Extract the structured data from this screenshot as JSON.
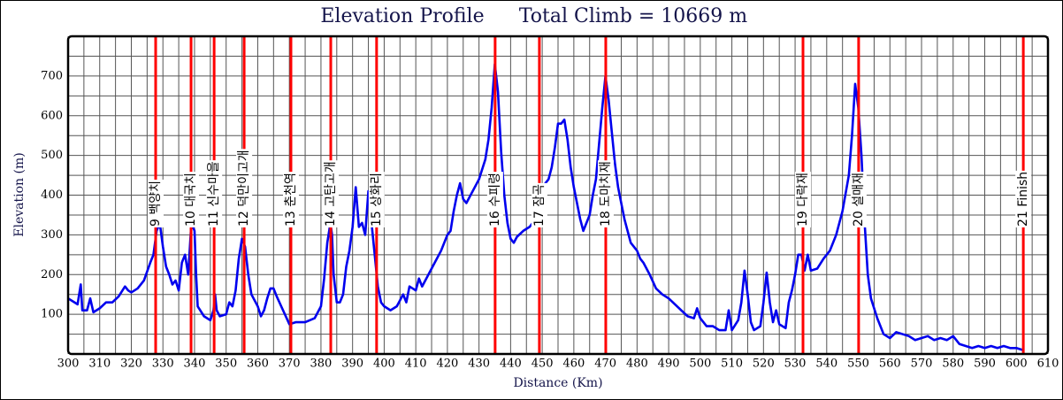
{
  "chart_data": {
    "type": "line",
    "title": "Elevation Profile",
    "subtitle": "Total Climb = 10669 m",
    "x_label": "Distance (Km)",
    "y_label": "Elevation (m)",
    "xlim": [
      300,
      610
    ],
    "ylim": [
      0,
      800
    ],
    "xticks": [
      300,
      310,
      320,
      330,
      340,
      350,
      360,
      370,
      380,
      390,
      400,
      410,
      420,
      430,
      440,
      450,
      460,
      470,
      480,
      490,
      500,
      510,
      520,
      530,
      540,
      550,
      560,
      570,
      580,
      590,
      600,
      610
    ],
    "yticks": [
      100,
      200,
      300,
      400,
      500,
      600,
      700
    ],
    "grid": true,
    "minor_grid": true,
    "x": [
      300,
      302,
      303,
      304,
      304.5,
      306,
      307,
      308,
      310,
      312,
      314,
      316,
      318,
      319,
      320,
      322,
      324,
      326,
      327,
      328,
      329,
      330,
      331,
      332,
      333,
      334,
      335,
      336,
      337,
      338,
      339,
      340,
      340.5,
      341,
      343,
      345,
      346,
      346.5,
      347,
      348,
      350,
      351,
      352,
      353,
      354,
      355,
      356,
      357,
      358,
      360,
      361,
      362,
      363,
      364,
      365,
      366,
      368,
      370,
      372,
      375,
      378,
      380,
      381,
      382,
      383,
      383.5,
      384,
      385,
      386,
      387,
      388,
      389,
      390,
      391,
      392,
      393,
      394,
      395,
      396,
      397,
      398,
      399,
      400,
      402,
      404,
      406,
      407,
      408,
      410,
      411,
      412,
      414,
      416,
      418,
      420,
      421,
      422,
      423,
      424,
      425,
      426,
      428,
      430,
      432,
      433,
      434,
      435,
      436,
      437,
      438,
      439,
      440,
      441,
      442,
      444,
      446,
      448,
      450,
      452,
      453,
      454,
      455,
      456,
      457,
      458,
      459,
      460,
      461,
      462,
      463,
      464,
      465,
      466,
      467,
      468,
      469,
      470,
      471,
      472,
      473,
      474,
      475,
      476,
      477,
      478,
      479,
      480,
      481,
      482,
      484,
      486,
      488,
      490,
      492,
      494,
      496,
      498,
      499,
      500,
      502,
      504,
      506,
      508,
      509,
      510,
      512,
      513,
      514,
      515,
      516,
      517,
      519,
      520,
      521,
      522,
      523,
      524,
      525,
      527,
      528,
      529,
      530,
      531,
      532,
      533,
      534,
      535,
      537,
      539,
      541,
      543,
      545,
      547,
      548,
      549,
      550,
      551,
      552,
      553,
      554,
      556,
      558,
      560,
      562,
      564,
      566,
      568,
      570,
      572,
      574,
      576,
      578,
      580,
      582,
      584,
      586,
      588,
      590,
      592,
      594,
      596,
      598,
      600,
      602
    ],
    "series": [
      {
        "name": "Elevation",
        "color": "#0000ee",
        "values": [
          140,
          130,
          125,
          175,
          110,
          110,
          140,
          105,
          115,
          130,
          130,
          145,
          170,
          160,
          155,
          165,
          185,
          230,
          250,
          310,
          330,
          270,
          220,
          200,
          175,
          185,
          160,
          230,
          250,
          200,
          330,
          310,
          200,
          120,
          95,
          85,
          110,
          150,
          110,
          95,
          100,
          130,
          120,
          160,
          240,
          290,
          270,
          200,
          150,
          120,
          95,
          110,
          140,
          165,
          165,
          145,
          110,
          75,
          80,
          80,
          90,
          120,
          190,
          280,
          330,
          300,
          200,
          130,
          130,
          150,
          220,
          260,
          320,
          420,
          320,
          330,
          300,
          410,
          330,
          250,
          170,
          130,
          120,
          110,
          120,
          150,
          130,
          170,
          160,
          190,
          170,
          200,
          230,
          260,
          300,
          310,
          360,
          400,
          430,
          390,
          380,
          410,
          440,
          490,
          540,
          620,
          730,
          660,
          510,
          400,
          330,
          290,
          280,
          295,
          310,
          320,
          340,
          420,
          440,
          470,
          520,
          580,
          580,
          590,
          540,
          470,
          420,
          380,
          340,
          310,
          330,
          350,
          400,
          440,
          530,
          620,
          700,
          640,
          560,
          480,
          420,
          380,
          340,
          310,
          280,
          270,
          260,
          240,
          230,
          200,
          165,
          150,
          140,
          125,
          110,
          95,
          90,
          115,
          90,
          70,
          70,
          60,
          60,
          110,
          60,
          85,
          130,
          210,
          150,
          80,
          60,
          70,
          130,
          205,
          130,
          80,
          110,
          75,
          65,
          130,
          160,
          200,
          250,
          250,
          210,
          250,
          210,
          215,
          240,
          260,
          300,
          360,
          450,
          550,
          680,
          620,
          500,
          330,
          200,
          140,
          90,
          50,
          40,
          55,
          50,
          45,
          35,
          40,
          45,
          35,
          40,
          35,
          45,
          25,
          20,
          15,
          20,
          15,
          20,
          15,
          20,
          15,
          15,
          10
        ]
      }
    ],
    "checkpoint_color": "#ff0000",
    "checkpoints": [
      {
        "label": "9 백양치",
        "x": 327.7
      },
      {
        "label": "10 대국치",
        "x": 338.9
      },
      {
        "label": "11 신수마을",
        "x": 346.2
      },
      {
        "label": "12 덕만이고개",
        "x": 355.7
      },
      {
        "label": "13 춘천역",
        "x": 370.5
      },
      {
        "label": "14 고탄고개",
        "x": 383.1
      },
      {
        "label": "15 상화리",
        "x": 397.6
      },
      {
        "label": "16 수피령",
        "x": 435.1
      },
      {
        "label": "17 잠곡",
        "x": 449.1
      },
      {
        "label": "18 도마치재",
        "x": 470.1
      },
      {
        "label": "19 다락재",
        "x": 532.5
      },
      {
        "label": "20 설매재",
        "x": 550.1
      },
      {
        "label": "21 Finish",
        "x": 602.2
      }
    ]
  }
}
